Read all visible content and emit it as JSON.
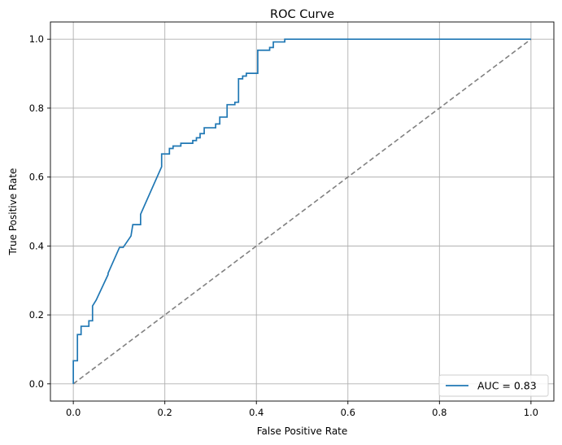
{
  "chart_data": {
    "type": "line",
    "title": "ROC Curve",
    "xlabel": "False Positive Rate",
    "ylabel": "True Positive Rate",
    "xlim": [
      -0.05,
      1.05
    ],
    "ylim": [
      -0.05,
      1.05
    ],
    "grid": true,
    "legend_position": "lower-right",
    "x_ticks": [
      "0.0",
      "0.2",
      "0.4",
      "0.6",
      "0.8",
      "1.0"
    ],
    "y_ticks": [
      "0.0",
      "0.2",
      "0.4",
      "0.6",
      "0.8",
      "1.0"
    ],
    "series": [
      {
        "name": "AUC = 0.83",
        "color": "#1f77b4",
        "style": "solid",
        "x": [
          0,
          0,
          0.009,
          0.009,
          0.017,
          0.017,
          0.034,
          0.034,
          0.042,
          0.042,
          0.05,
          0.076,
          0.076,
          0.101,
          0.109,
          0.126,
          0.13,
          0.147,
          0.147,
          0.193,
          0.193,
          0.21,
          0.21,
          0.218,
          0.218,
          0.235,
          0.235,
          0.261,
          0.261,
          0.269,
          0.269,
          0.277,
          0.277,
          0.286,
          0.286,
          0.311,
          0.311,
          0.32,
          0.32,
          0.336,
          0.336,
          0.353,
          0.353,
          0.361,
          0.361,
          0.37,
          0.37,
          0.378,
          0.378,
          0.403,
          0.403,
          0.429,
          0.429,
          0.437,
          0.437,
          0.462,
          0.462,
          1
        ],
        "y": [
          0,
          0.067,
          0.067,
          0.143,
          0.143,
          0.167,
          0.167,
          0.183,
          0.183,
          0.226,
          0.243,
          0.317,
          0.321,
          0.396,
          0.396,
          0.429,
          0.462,
          0.462,
          0.492,
          0.63,
          0.667,
          0.667,
          0.683,
          0.683,
          0.69,
          0.69,
          0.698,
          0.698,
          0.706,
          0.706,
          0.714,
          0.714,
          0.726,
          0.726,
          0.743,
          0.743,
          0.754,
          0.754,
          0.774,
          0.774,
          0.81,
          0.81,
          0.817,
          0.817,
          0.885,
          0.885,
          0.893,
          0.893,
          0.901,
          0.901,
          0.968,
          0.968,
          0.976,
          0.976,
          0.992,
          0.992,
          1.0,
          1.0
        ]
      },
      {
        "name": "",
        "color": "#808080",
        "style": "dashed",
        "x": [
          0,
          1
        ],
        "y": [
          0,
          1
        ]
      }
    ]
  }
}
